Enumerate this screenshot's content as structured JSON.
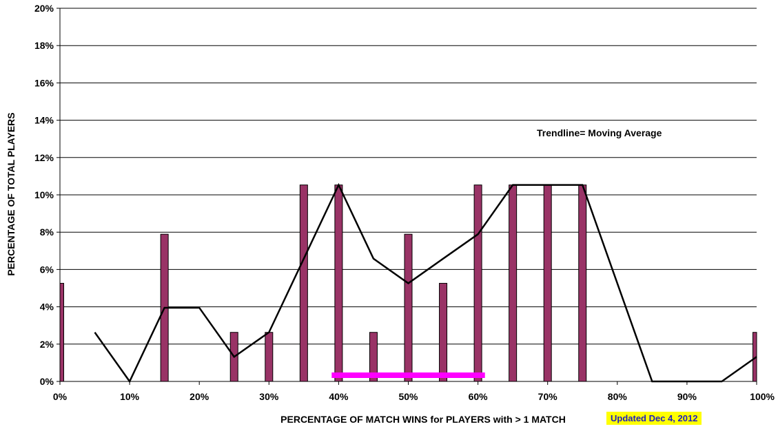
{
  "chart_data": {
    "type": "bar",
    "title": "",
    "xlabel": "PERCENTAGE OF MATCH WINS for PLAYERS with > 1 MATCH",
    "ylabel": "PERCENTAGE OF TOTAL PLAYERS",
    "xlim": [
      0,
      100
    ],
    "ylim": [
      0,
      20
    ],
    "x_ticks": [
      "0%",
      "10%",
      "20%",
      "30%",
      "40%",
      "50%",
      "60%",
      "70%",
      "80%",
      "90%",
      "100%"
    ],
    "y_ticks": [
      "0%",
      "2%",
      "4%",
      "6%",
      "8%",
      "10%",
      "12%",
      "14%",
      "16%",
      "18%",
      "20%"
    ],
    "grid": true,
    "bar_color": "#993366",
    "bars": {
      "x": [
        0,
        15,
        25,
        30,
        35,
        40,
        45,
        50,
        55,
        60,
        65,
        70,
        75,
        100
      ],
      "values": [
        5.26,
        7.89,
        2.63,
        2.63,
        10.53,
        10.53,
        2.63,
        7.89,
        5.26,
        10.53,
        10.53,
        10.53,
        10.53,
        2.63
      ]
    },
    "trendline": {
      "label": "Trendline= Moving Average",
      "color": "#000000",
      "x": [
        5,
        10,
        15,
        20,
        25,
        30,
        35,
        40,
        45,
        50,
        55,
        60,
        65,
        70,
        75,
        80,
        85,
        90,
        95,
        100
      ],
      "values": [
        2.63,
        0,
        3.95,
        3.95,
        1.32,
        2.63,
        6.58,
        10.53,
        6.58,
        5.26,
        6.58,
        7.89,
        10.53,
        10.53,
        10.53,
        5.26,
        0,
        0,
        0,
        1.32
      ]
    },
    "highlight_range": {
      "x": [
        39,
        61
      ],
      "color": "#ff00ff"
    }
  },
  "annotation": {
    "updated": "Updated Dec 4, 2012"
  }
}
